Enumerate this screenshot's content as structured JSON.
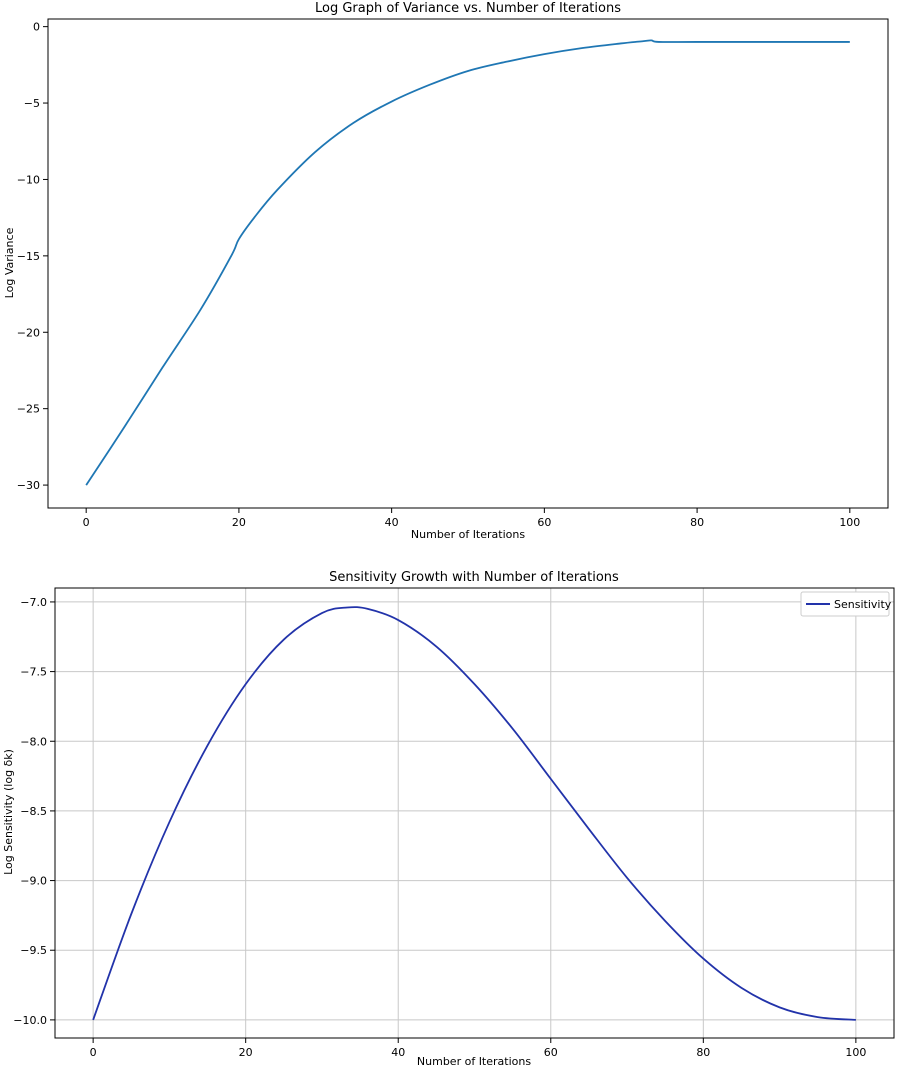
{
  "chart_data": [
    {
      "type": "line",
      "title": "Log Graph of Variance vs. Number of Iterations",
      "xlabel": "Number of Iterations",
      "ylabel": "Log Variance",
      "xlim": [
        -5,
        105
      ],
      "ylim": [
        -31.5,
        0.5
      ],
      "xticks": [
        0,
        20,
        40,
        60,
        80,
        100
      ],
      "yticks": [
        0,
        -5,
        -10,
        -15,
        -20,
        -25,
        -30
      ],
      "grid": false,
      "legend": null,
      "color": "#1f77b4",
      "series": [
        {
          "x": [
            0,
            5,
            10,
            15,
            19,
            20,
            22,
            25,
            30,
            35,
            40,
            45,
            50,
            55,
            60,
            65,
            70,
            73,
            74,
            75,
            80,
            90,
            100
          ],
          "y": [
            -30.0,
            -26.2,
            -22.3,
            -18.5,
            -15.0,
            -13.9,
            -12.5,
            -10.7,
            -8.2,
            -6.3,
            -4.9,
            -3.8,
            -2.9,
            -2.3,
            -1.8,
            -1.4,
            -1.1,
            -0.95,
            -0.9,
            -1.0,
            -1.0,
            -1.0,
            -1.0
          ]
        }
      ]
    },
    {
      "type": "line",
      "title": "Sensitivity Growth with Number of Iterations",
      "xlabel": "Number of Iterations",
      "ylabel": "Log Sensitivity (log δk)",
      "xlim": [
        -5,
        105
      ],
      "ylim": [
        -10.13,
        -6.9
      ],
      "xticks": [
        0,
        20,
        40,
        60,
        80,
        100
      ],
      "yticks": [
        -7.0,
        -7.5,
        -8.0,
        -8.5,
        -9.0,
        -9.5,
        -10.0
      ],
      "grid": true,
      "legend": "top-right",
      "color": "#2233aa",
      "series": [
        {
          "name": "Sensitivity",
          "x": [
            0,
            5,
            10,
            15,
            20,
            25,
            30,
            33.3,
            36,
            40,
            45,
            50,
            55,
            60,
            65,
            70,
            75,
            80,
            85,
            90,
            95,
            100
          ],
          "y": [
            -10.0,
            -9.24,
            -8.58,
            -8.03,
            -7.59,
            -7.27,
            -7.08,
            -7.04,
            -7.05,
            -7.13,
            -7.32,
            -7.59,
            -7.91,
            -8.27,
            -8.63,
            -8.98,
            -9.29,
            -9.56,
            -9.77,
            -9.91,
            -9.98,
            -10.0
          ]
        }
      ]
    }
  ]
}
